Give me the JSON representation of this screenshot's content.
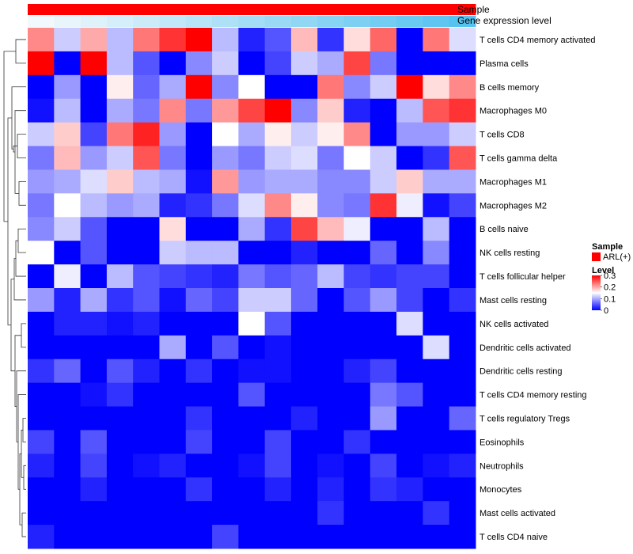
{
  "chart_data": {
    "type": "heatmap",
    "title": "",
    "columns": 17,
    "annotation_tracks": [
      {
        "name": "Sample",
        "kind": "categorical",
        "value": "ARL(+)",
        "color": "#ff0000"
      },
      {
        "name": "Gene expression level",
        "kind": "gradient",
        "from_color": "#f2f9fc",
        "to_color": "#56c2ef"
      }
    ],
    "rows": [
      "T cells CD4 memory activated",
      "Plasma cells",
      "B cells memory",
      "Macrophages M0",
      "T cells CD8",
      "T cells gamma delta",
      "Macrophages M1",
      "Macrophages M2",
      "B cells naive",
      "NK cells resting",
      "T cells follicular helper",
      "Mast cells resting",
      "NK cells activated",
      "Dendritic cells activated",
      "Dendritic cells resting",
      "T cells CD4 memory resting",
      "T cells regulatory  Tregs",
      "Eosinophils",
      "Neutrophils",
      "Monocytes",
      "Mast cells activated",
      "T cells CD4 naive"
    ],
    "values": [
      [
        0.22,
        0.12,
        0.2,
        0.11,
        0.23,
        0.27,
        0.3,
        0.11,
        0.02,
        0.05,
        0.19,
        0.03,
        0.17,
        0.24,
        0.0,
        0.23,
        0.13
      ],
      [
        0.3,
        0.0,
        0.3,
        0.11,
        0.05,
        0.0,
        0.08,
        0.12,
        0.0,
        0.04,
        0.12,
        0.1,
        0.26,
        0.07,
        0.0,
        0.0,
        0.0
      ],
      [
        0.0,
        0.09,
        0.0,
        0.16,
        0.06,
        0.1,
        0.3,
        0.08,
        0.15,
        0.0,
        0.0,
        0.23,
        0.08,
        0.12,
        0.3,
        0.17,
        0.22
      ],
      [
        0.01,
        0.11,
        0.0,
        0.1,
        0.07,
        0.22,
        0.07,
        0.21,
        0.26,
        0.3,
        0.08,
        0.18,
        0.02,
        0.0,
        0.11,
        0.25,
        0.27
      ],
      [
        0.12,
        0.18,
        0.04,
        0.23,
        0.28,
        0.09,
        0.0,
        0.15,
        0.1,
        0.16,
        0.12,
        0.16,
        0.22,
        0.0,
        0.09,
        0.09,
        0.12
      ],
      [
        0.07,
        0.19,
        0.09,
        0.12,
        0.25,
        0.07,
        0.0,
        0.09,
        0.07,
        0.12,
        0.13,
        0.07,
        0.15,
        0.12,
        0.0,
        0.03,
        0.25
      ],
      [
        0.09,
        0.1,
        0.13,
        0.18,
        0.11,
        0.1,
        0.01,
        0.21,
        0.09,
        0.1,
        0.1,
        0.08,
        0.08,
        0.12,
        0.18,
        0.1,
        0.1
      ],
      [
        0.07,
        0.15,
        0.11,
        0.09,
        0.1,
        0.02,
        0.03,
        0.07,
        0.13,
        0.22,
        0.16,
        0.08,
        0.07,
        0.27,
        0.14,
        0.01,
        0.04
      ],
      [
        0.08,
        0.12,
        0.05,
        0.0,
        0.0,
        0.17,
        0.0,
        0.0,
        0.1,
        0.03,
        0.26,
        0.19,
        0.14,
        0.0,
        0.0,
        0.11,
        0.0
      ],
      [
        0.15,
        0.0,
        0.05,
        0.0,
        0.0,
        0.12,
        0.11,
        0.11,
        0.0,
        0.0,
        0.02,
        0.0,
        0.0,
        0.06,
        0.0,
        0.08,
        0.0
      ],
      [
        0.0,
        0.14,
        0.0,
        0.11,
        0.05,
        0.04,
        0.03,
        0.02,
        0.07,
        0.05,
        0.06,
        0.11,
        0.04,
        0.03,
        0.04,
        0.04,
        0.0
      ],
      [
        0.09,
        0.02,
        0.1,
        0.03,
        0.05,
        0.01,
        0.06,
        0.04,
        0.12,
        0.12,
        0.06,
        0.0,
        0.05,
        0.09,
        0.04,
        0.0,
        0.03
      ],
      [
        0.0,
        0.02,
        0.02,
        0.01,
        0.02,
        0.0,
        0.0,
        0.0,
        0.15,
        0.05,
        0.0,
        0.0,
        0.0,
        0.0,
        0.13,
        0.0,
        0.0
      ],
      [
        0.0,
        0.0,
        0.0,
        0.0,
        0.0,
        0.1,
        0.0,
        0.05,
        0.0,
        0.01,
        0.0,
        0.0,
        0.0,
        0.0,
        0.0,
        0.13,
        0.0
      ],
      [
        0.03,
        0.06,
        0.0,
        0.05,
        0.02,
        0.0,
        0.03,
        0.0,
        0.01,
        0.01,
        0.0,
        0.0,
        0.02,
        0.04,
        0.0,
        0.0,
        0.0
      ],
      [
        0.0,
        0.0,
        0.01,
        0.03,
        0.0,
        0.0,
        0.0,
        0.0,
        0.05,
        0.0,
        0.0,
        0.0,
        0.0,
        0.07,
        0.05,
        0.0,
        0.0
      ],
      [
        0.0,
        0.0,
        0.0,
        0.0,
        0.0,
        0.0,
        0.03,
        0.0,
        0.0,
        0.0,
        0.02,
        0.0,
        0.0,
        0.09,
        0.0,
        0.0,
        0.06
      ],
      [
        0.04,
        0.0,
        0.05,
        0.0,
        0.0,
        0.0,
        0.04,
        0.0,
        0.0,
        0.04,
        0.0,
        0.0,
        0.03,
        0.0,
        0.0,
        0.0,
        0.0
      ],
      [
        0.02,
        0.0,
        0.04,
        0.0,
        0.01,
        0.02,
        0.0,
        0.0,
        0.01,
        0.04,
        0.0,
        0.01,
        0.0,
        0.04,
        0.0,
        0.01,
        0.02
      ],
      [
        0.0,
        0.0,
        0.02,
        0.0,
        0.0,
        0.0,
        0.03,
        0.0,
        0.0,
        0.02,
        0.0,
        0.02,
        0.0,
        0.03,
        0.02,
        0.0,
        0.0
      ],
      [
        0.0,
        0.0,
        0.0,
        0.0,
        0.0,
        0.0,
        0.0,
        0.0,
        0.0,
        0.0,
        0.0,
        0.03,
        0.0,
        0.0,
        0.0,
        0.03,
        0.0
      ],
      [
        0.02,
        0.0,
        0.0,
        0.0,
        0.0,
        0.0,
        0.0,
        0.04,
        0.0,
        0.0,
        0.0,
        0.0,
        0.0,
        0.0,
        0.0,
        0.0,
        0.0
      ]
    ],
    "color_scale": {
      "min": 0,
      "mid": 0.15,
      "max": 0.3,
      "low_color": "#0000ff",
      "mid_color": "#ffffff",
      "high_color": "#ff0000"
    },
    "legend": {
      "placement": "right",
      "sample_title": "Sample",
      "sample_entry": "ARL(+)",
      "level_title": "Level",
      "level_ticks": [
        "0.3",
        "0.2",
        "0.1",
        "0"
      ]
    },
    "row_dendrogram": true
  }
}
